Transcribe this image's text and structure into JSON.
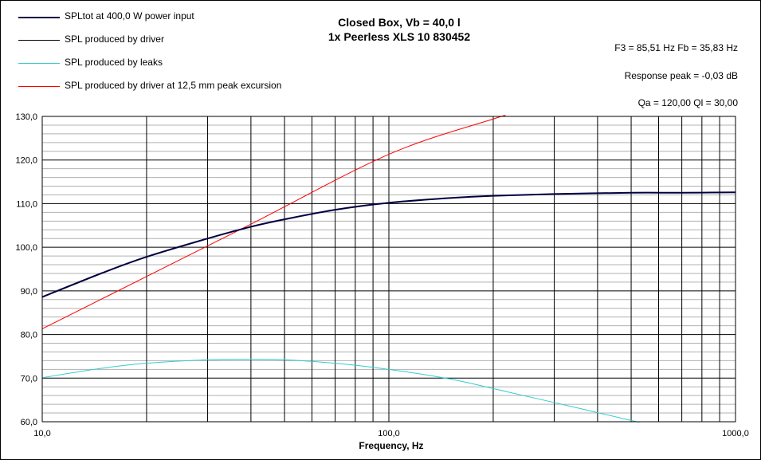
{
  "chart_data": {
    "type": "line",
    "title": "Closed Box, Vb = 40,0 l",
    "subtitle": "1x Peerless XLS 10 830452",
    "xlabel": "Frequency, Hz",
    "ylabel": "",
    "xscale": "log",
    "xlim": [
      10,
      1000
    ],
    "ylim": [
      60,
      130
    ],
    "grid": true,
    "legend_position": "top-left",
    "x_ticks": [
      10,
      100,
      1000
    ],
    "x_tick_labels": [
      "10,0",
      "100,0",
      "1000,0"
    ],
    "y_ticks": [
      60,
      70,
      80,
      90,
      100,
      110,
      120,
      130
    ],
    "y_tick_labels": [
      "60,0",
      "70,0",
      "80,0",
      "90,0",
      "100,0",
      "110,0",
      "120,0",
      "130,0"
    ],
    "annotations": [
      "F3 = 85,51 Hz  Fb = 35,83 Hz",
      "Response  peak = -0,03 dB",
      "Qa = 120,00  Ql = 30,00"
    ],
    "series": [
      {
        "name": "SPLtot at 400,0 W power input",
        "color": "#000040",
        "width": 2,
        "x": [
          10,
          15,
          20,
          30,
          40,
          50,
          70,
          100,
          150,
          200,
          300,
          500,
          700,
          1000
        ],
        "y": [
          88.6,
          94.2,
          97.8,
          102.0,
          104.7,
          106.4,
          108.6,
          110.2,
          111.3,
          111.8,
          112.2,
          112.5,
          112.5,
          112.6
        ]
      },
      {
        "name": "SPL produced by driver",
        "color": "#000000",
        "width": 1,
        "x": [
          10,
          15,
          20,
          30,
          40,
          50,
          70,
          100,
          150,
          200,
          300,
          500,
          700,
          1000
        ],
        "y": [
          88.6,
          94.2,
          97.8,
          102.0,
          104.7,
          106.4,
          108.6,
          110.2,
          111.3,
          111.8,
          112.2,
          112.5,
          112.5,
          112.6
        ]
      },
      {
        "name": "SPL produced by leaks",
        "color": "#33CCCC",
        "width": 1,
        "x": [
          10,
          15,
          20,
          30,
          40,
          50,
          70,
          100,
          150,
          200,
          300,
          500,
          520
        ],
        "y": [
          70.1,
          72.3,
          73.4,
          74.2,
          74.3,
          74.2,
          73.4,
          72.0,
          69.8,
          67.6,
          64.4,
          60.3,
          60.0
        ]
      },
      {
        "name": "SPL produced by driver at 12,5 mm peak excursion",
        "color": "#FF0000",
        "width": 1,
        "x": [
          10,
          20,
          40,
          100,
          200,
          215
        ],
        "y": [
          81.3,
          93.3,
          105.3,
          121.3,
          129.4,
          130.0
        ]
      }
    ]
  }
}
